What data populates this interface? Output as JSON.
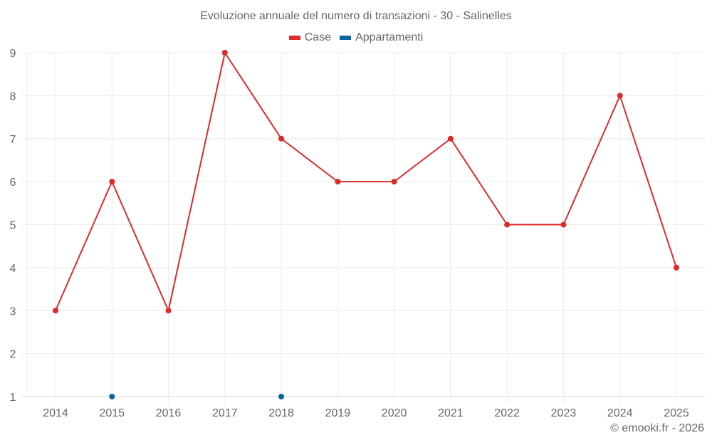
{
  "chart": {
    "title": "Evoluzione annuale del numero di transazioni - 30 - Salinelles",
    "credit": "© emooki.fr - 2026",
    "legend": [
      {
        "label": "Case",
        "color": "#dd2a2a"
      },
      {
        "label": "Appartamenti",
        "color": "#0a64a0"
      }
    ]
  },
  "chart_data": {
    "type": "line",
    "title": "Evoluzione annuale del numero di transazioni - 30 - Salinelles",
    "xlabel": "",
    "ylabel": "",
    "categories": [
      "2014",
      "2015",
      "2016",
      "2017",
      "2018",
      "2019",
      "2020",
      "2021",
      "2022",
      "2023",
      "2024",
      "2025"
    ],
    "series": [
      {
        "name": "Case",
        "color": "#dd2a2a",
        "values": [
          3,
          6,
          3,
          9,
          7,
          6,
          6,
          7,
          5,
          5,
          8,
          4
        ],
        "style": "line+markers"
      },
      {
        "name": "Appartamenti",
        "color": "#0a64a0",
        "values": [
          null,
          1,
          null,
          null,
          1,
          null,
          null,
          null,
          null,
          null,
          null,
          null
        ],
        "style": "markers"
      }
    ],
    "ylim": [
      1,
      9
    ],
    "yticks": [
      1,
      2,
      3,
      4,
      5,
      6,
      7,
      8,
      9
    ],
    "grid": true,
    "legend_position": "top"
  }
}
